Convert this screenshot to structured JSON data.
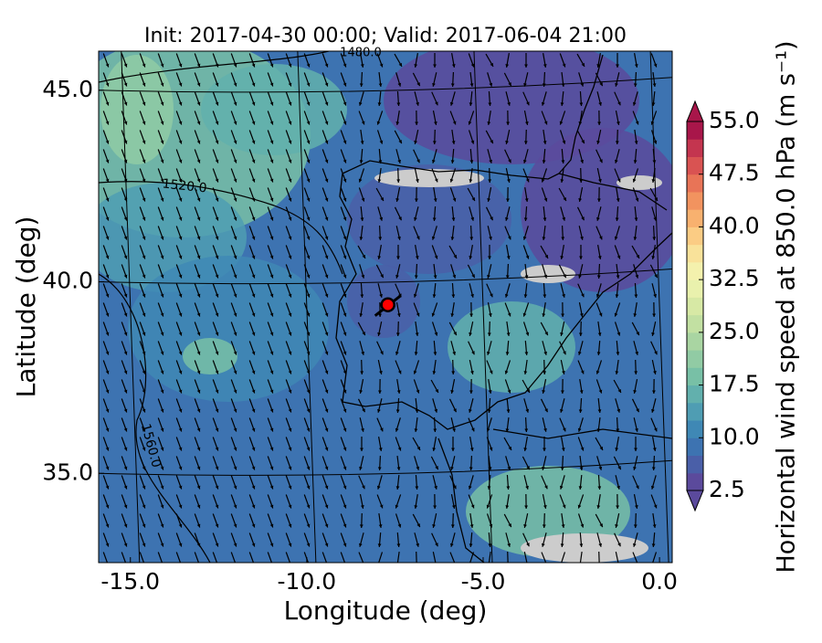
{
  "chart_data": {
    "type": "map",
    "title": "Init: 2017-04-30 00:00; Valid: 2017-06-04 21:00",
    "x_label": "Longitude (deg)",
    "y_label": "Latitude (deg)",
    "xlim": [
      -15.9,
      0.36
    ],
    "ylim": [
      32.67,
      46.02
    ],
    "xticks": [
      {
        "value": -15,
        "label": "-15.0"
      },
      {
        "value": -10,
        "label": "-10.0"
      },
      {
        "value": -5,
        "label": "-5.0"
      },
      {
        "value": 0,
        "label": "0.0"
      }
    ],
    "yticks": [
      {
        "value": 35,
        "label": "35.0"
      },
      {
        "value": 40,
        "label": "40.0"
      },
      {
        "value": 45,
        "label": "45.0"
      }
    ],
    "colorbar_label": "Horizontal wind speed at 850.0 hPa (m s⁻¹)",
    "colorbar_lim": [
      2.5,
      55
    ],
    "colorbar_ticks": [
      {
        "value": 2.5,
        "label": "2.5"
      },
      {
        "value": 10,
        "label": "10.0"
      },
      {
        "value": 17.5,
        "label": "17.5"
      },
      {
        "value": 25,
        "label": "25.0"
      },
      {
        "value": 32.5,
        "label": "32.5"
      },
      {
        "value": 40,
        "label": "40.0"
      },
      {
        "value": 47.5,
        "label": "47.5"
      },
      {
        "value": 55,
        "label": "55.0"
      }
    ],
    "colors": [
      "#5b4a9c",
      "#4a5fa8",
      "#3d73b1",
      "#3f88b5",
      "#4f9db3",
      "#62b0ad",
      "#78c0a6",
      "#91cba4",
      "#a9d5a2",
      "#c2e0a2",
      "#d7e9a5",
      "#e9f1ad",
      "#f4f1ad",
      "#f9e29a",
      "#fbcc84",
      "#f8b16f",
      "#f2935f",
      "#e87457",
      "#d95352",
      "#c4354f",
      "#a8164a"
    ],
    "contour_labels": [
      "1480.0",
      "1520.0",
      "1560.0"
    ],
    "marker": {
      "lon": -7.7,
      "lat": 39.4,
      "color": "#ff0000"
    }
  }
}
